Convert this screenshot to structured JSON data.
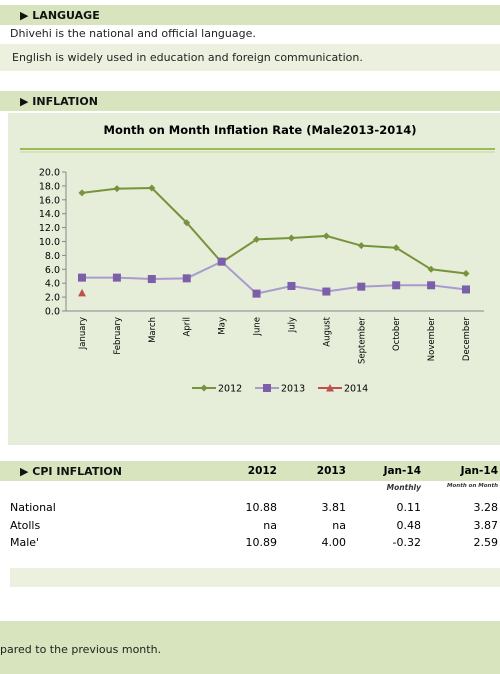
{
  "language": {
    "heading": "LANGUAGE",
    "line1": "Dhivehi is the national and official language.",
    "line2": "English is widely used in education and foreign communication."
  },
  "inflation": {
    "heading": "INFLATION"
  },
  "chart_data": {
    "type": "line",
    "title": "Month on Month Inflation Rate  (Male2013-2014)",
    "categories": [
      "January",
      "February",
      "March",
      "April",
      "May",
      "June",
      "July",
      "August",
      "September",
      "October",
      "November",
      "December"
    ],
    "series": [
      {
        "name": "2012",
        "color": "#77933c",
        "marker": "diamond",
        "values": [
          17.0,
          17.6,
          17.7,
          12.7,
          7.0,
          10.3,
          10.5,
          10.8,
          9.4,
          9.1,
          6.0,
          5.4
        ]
      },
      {
        "name": "2013",
        "color": "#7b5fa8",
        "marker": "square",
        "values": [
          4.8,
          4.8,
          4.6,
          4.7,
          7.1,
          2.5,
          3.6,
          2.8,
          3.5,
          3.7,
          3.7,
          3.1
        ]
      },
      {
        "name": "2014",
        "color": "#c0504d",
        "marker": "triangle",
        "values": [
          2.6,
          null,
          null,
          null,
          null,
          null,
          null,
          null,
          null,
          null,
          null,
          null
        ]
      }
    ],
    "ylim": [
      0,
      20
    ],
    "yticks": [
      {
        "value": 0,
        "label": "0.0"
      },
      {
        "value": 2,
        "label": "2.0"
      },
      {
        "value": 4,
        "label": "4.0"
      },
      {
        "value": 6,
        "label": "6.0"
      },
      {
        "value": 8,
        "label": "8.0"
      },
      {
        "value": 10,
        "label": "10.0"
      },
      {
        "value": 12,
        "label": "12.0"
      },
      {
        "value": 14,
        "label": "14.0"
      },
      {
        "value": 16,
        "label": "16.0"
      },
      {
        "value": 18,
        "label": "18.0"
      },
      {
        "value": 20,
        "label": "20.0"
      }
    ],
    "grid": false,
    "legend": "bottom"
  },
  "cpi_table": {
    "heading": "CPI  INFLATION",
    "columns": [
      "2012",
      "2013",
      "Jan-14",
      "Jan-14"
    ],
    "subcolumns": [
      "Monthly",
      "Month on Month"
    ],
    "rows": [
      [
        "National",
        "10.88",
        "3.81",
        "0.11",
        "3.28"
      ],
      [
        "Atolls",
        "na",
        "na",
        "0.48",
        "3.87"
      ],
      [
        "Male'",
        "10.89",
        "4.00",
        "-0.32",
        "2.59"
      ]
    ]
  },
  "footer": "pared to the previous month."
}
